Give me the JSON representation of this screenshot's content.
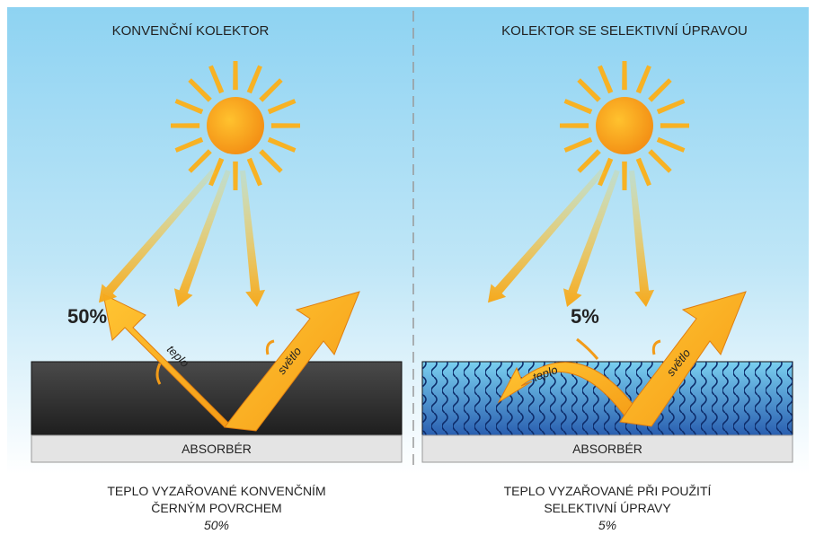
{
  "panels": [
    {
      "title": "KONVENČNÍ KOLEKTOR",
      "percent": "50%",
      "heat_label": "teplo",
      "light_label": "světlo",
      "absorber": "ABSORBÉR",
      "caption": [
        "TEPLO VYZAŘOVANÉ KONVENČNÍM",
        "ČERNÝM POVRCHEM",
        "50%"
      ]
    },
    {
      "title": "KOLEKTOR SE SELEKTIVNÍ ÚPRAVOU",
      "percent": "5%",
      "heat_label": "teplo",
      "light_label": "světlo",
      "absorber": "ABSORBÉR",
      "caption": [
        "TEPLO VYZAŘOVANÉ PŘI POUŽITÍ",
        "SELEKTIVNÍ ÚPRAVY",
        "5%"
      ]
    }
  ]
}
